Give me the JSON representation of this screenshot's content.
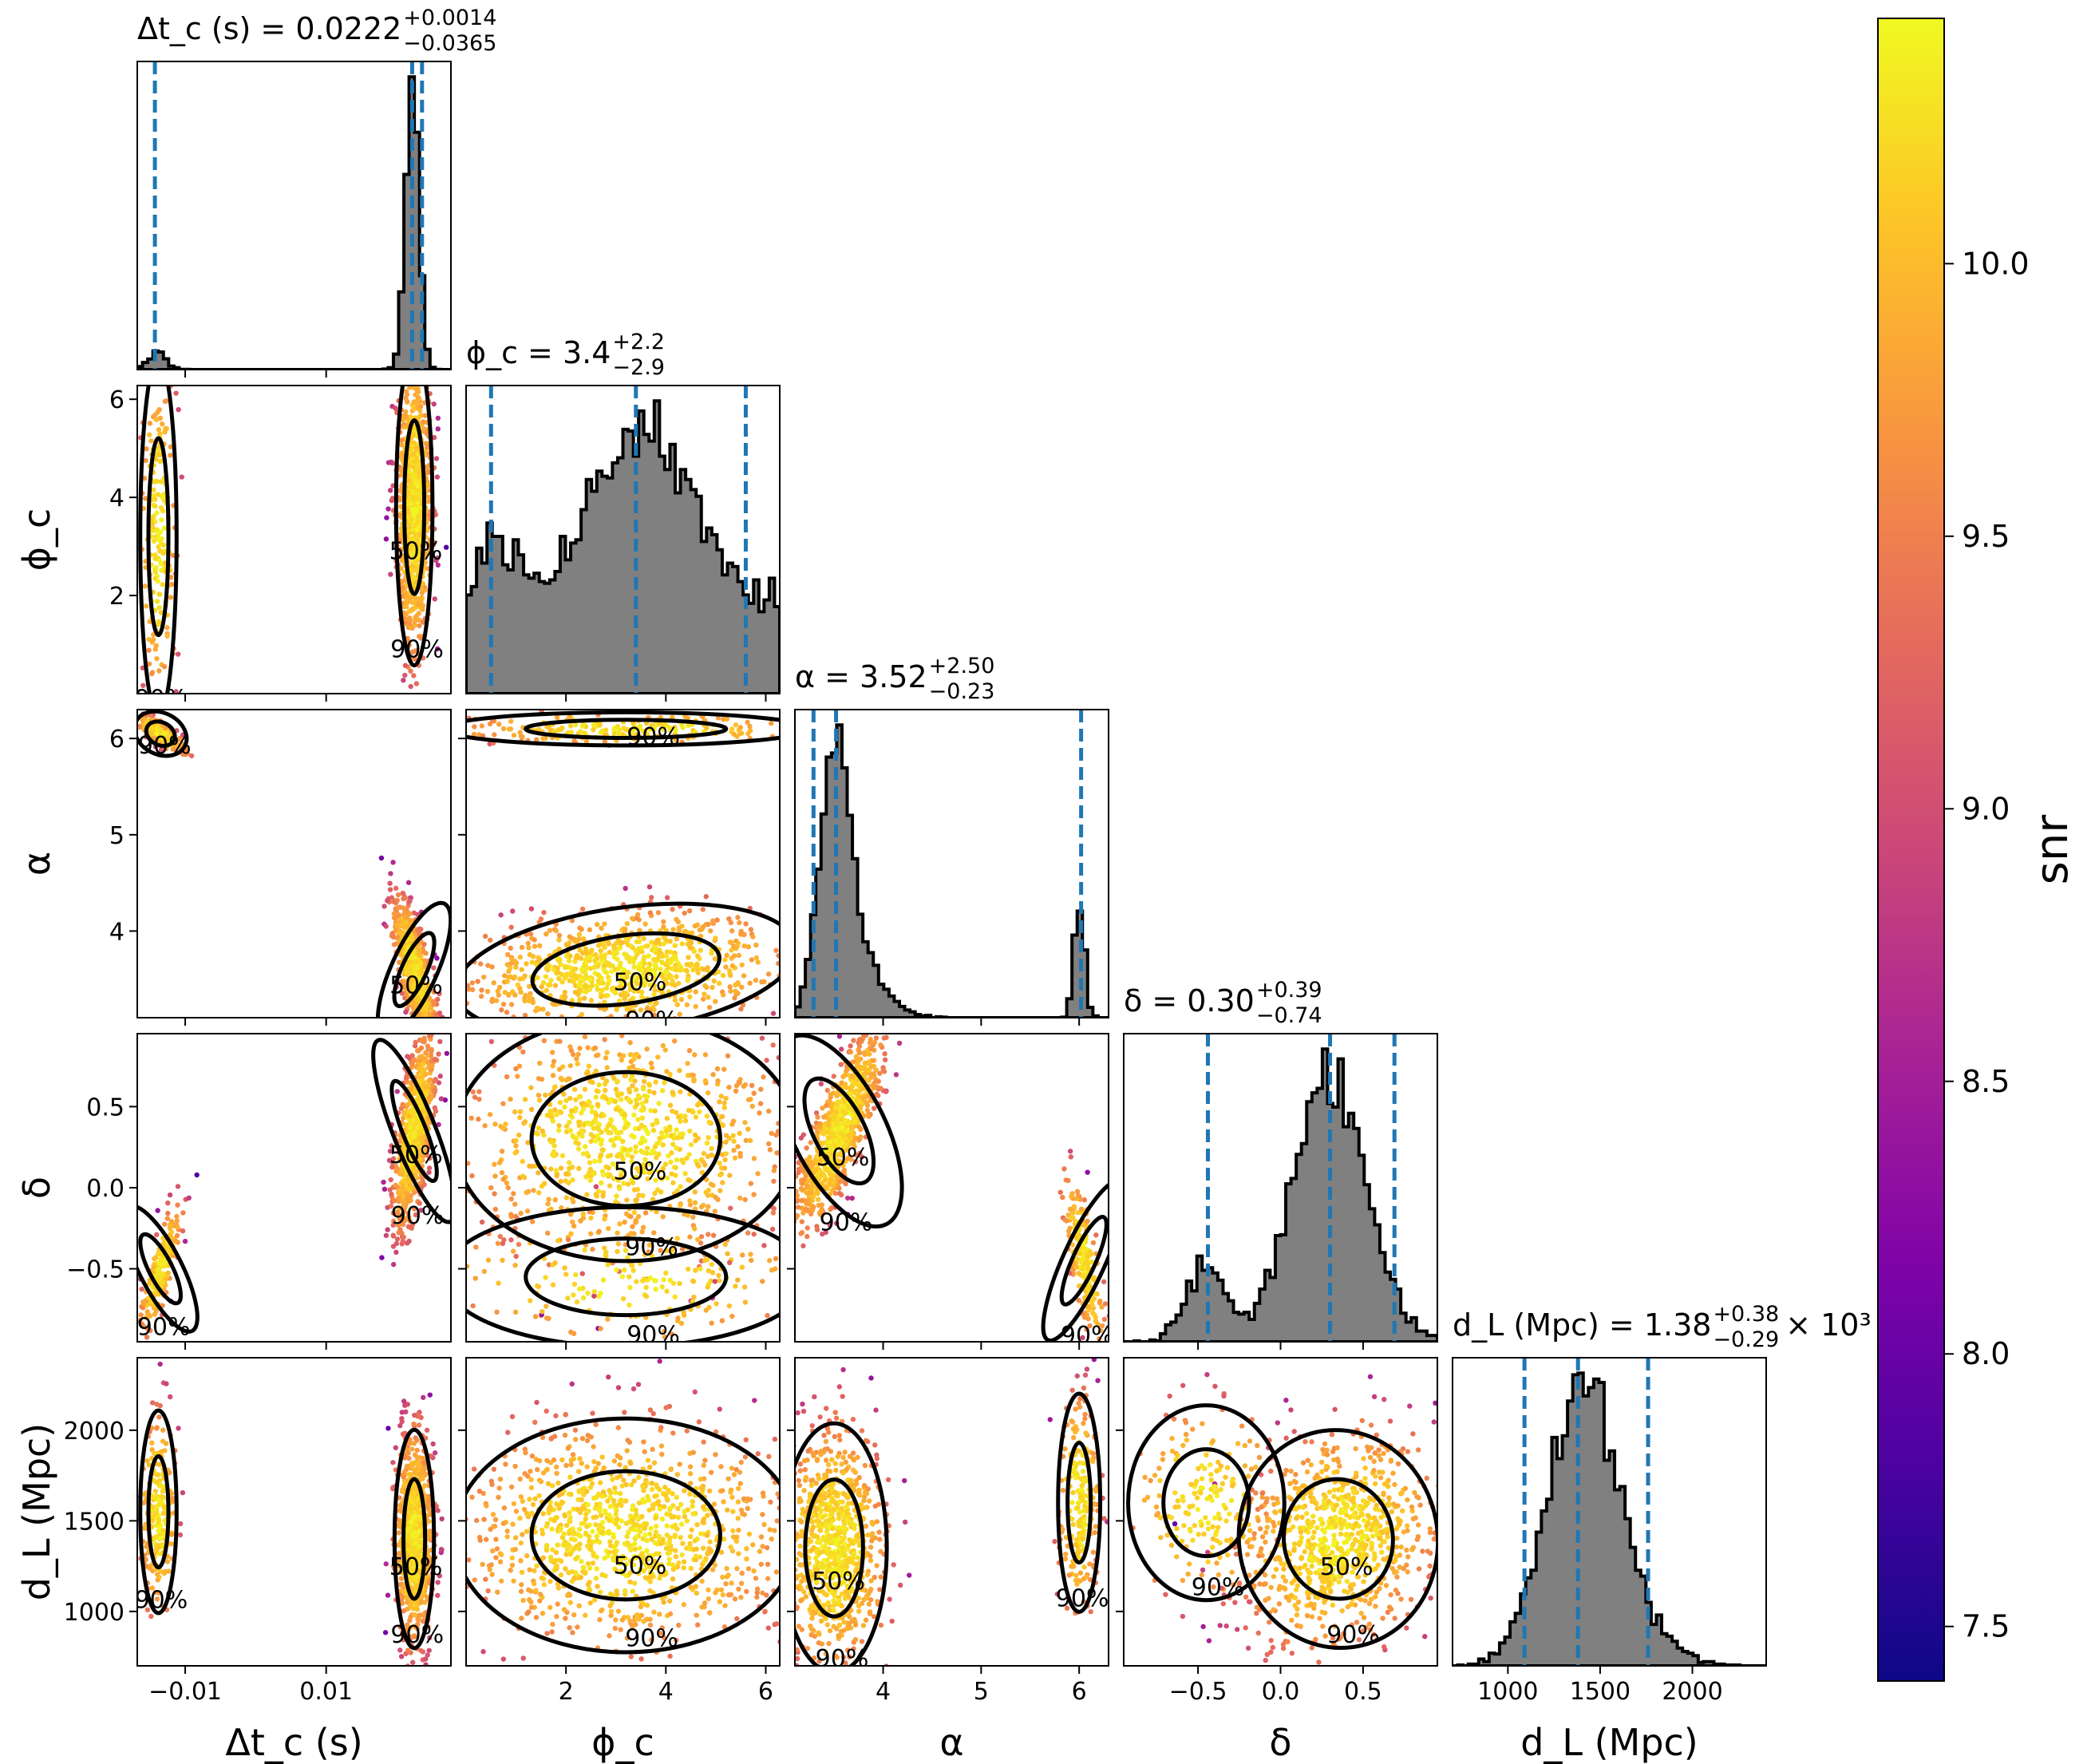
{
  "chart_data": {
    "type": "corner",
    "params": [
      {
        "key": "dtc",
        "xlabel": "Δt_c (s)",
        "ylabel": "",
        "range": [
          -0.0168,
          0.0277
        ],
        "ticks": [
          -0.01,
          0.01
        ],
        "tick_labels": [
          "−0.01",
          "0.01"
        ],
        "title": {
          "lhs": "Δt_c (s) = 0.0222",
          "sup": "+0.0014",
          "sub": "−0.0365"
        },
        "quantiles": [
          -0.0143,
          0.0222,
          0.0236
        ],
        "hist_mode": [
          {
            "mu": 0.0222,
            "sigma": 0.0009,
            "weight": 0.92
          },
          {
            "mu": -0.014,
            "sigma": 0.0012,
            "weight": 0.08
          }
        ]
      },
      {
        "key": "phic",
        "xlabel": "ϕ_c",
        "ylabel": "ϕ_c",
        "range": [
          0.0,
          6.28
        ],
        "ticks": [
          2,
          4,
          6
        ],
        "tick_labels": [
          "2",
          "4",
          "6"
        ],
        "title": {
          "lhs": "ϕ_c = 3.4",
          "sup": "+2.2",
          "sub": "−2.9"
        },
        "quantiles": [
          0.5,
          3.4,
          5.6
        ]
      },
      {
        "key": "alpha",
        "xlabel": "α",
        "ylabel": "α",
        "range": [
          3.1,
          6.3
        ],
        "ticks": [
          4,
          5,
          6
        ],
        "tick_labels": [
          "4",
          "5",
          "6"
        ],
        "title": {
          "lhs": "α = 3.52",
          "sup": "+2.50",
          "sub": "−0.23"
        },
        "quantiles": [
          3.29,
          3.52,
          6.02
        ]
      },
      {
        "key": "delta",
        "xlabel": "δ",
        "ylabel": "δ",
        "range": [
          -0.95,
          0.95
        ],
        "ticks": [
          -0.5,
          0.0,
          0.5
        ],
        "tick_labels": [
          "−0.5",
          "0.0",
          "0.5"
        ],
        "title": {
          "lhs": "δ = 0.30",
          "sup": "+0.39",
          "sub": "−0.74"
        },
        "quantiles": [
          -0.44,
          0.3,
          0.69
        ]
      },
      {
        "key": "dl",
        "xlabel": "d_L (Mpc)",
        "ylabel": "d_L (Mpc)",
        "range": [
          700,
          2400
        ],
        "ticks": [
          1000,
          1500,
          2000
        ],
        "tick_labels": [
          "1000",
          "1500",
          "2000"
        ],
        "title": {
          "lhs": "d_L (Mpc) = 1.38",
          "sup": "+0.38",
          "sub": "−0.29",
          "suffix": "× 10³"
        },
        "quantiles": [
          1090,
          1380,
          1760
        ]
      }
    ],
    "contour_levels": [
      "50%",
      "90%"
    ],
    "colorbar": {
      "label": "snr",
      "range": [
        7.4,
        10.45
      ],
      "ticks": [
        7.5,
        8.0,
        8.5,
        9.0,
        9.5,
        10.0
      ],
      "tick_labels": [
        "7.5",
        "8.0",
        "8.5",
        "9.0",
        "9.5",
        "10.0"
      ],
      "colormap": "plasma"
    },
    "colors": {
      "hist_fill": "#808080",
      "hist_edge": "#000000",
      "quantile_line": "#1f77b4",
      "contour": "#000000"
    }
  }
}
